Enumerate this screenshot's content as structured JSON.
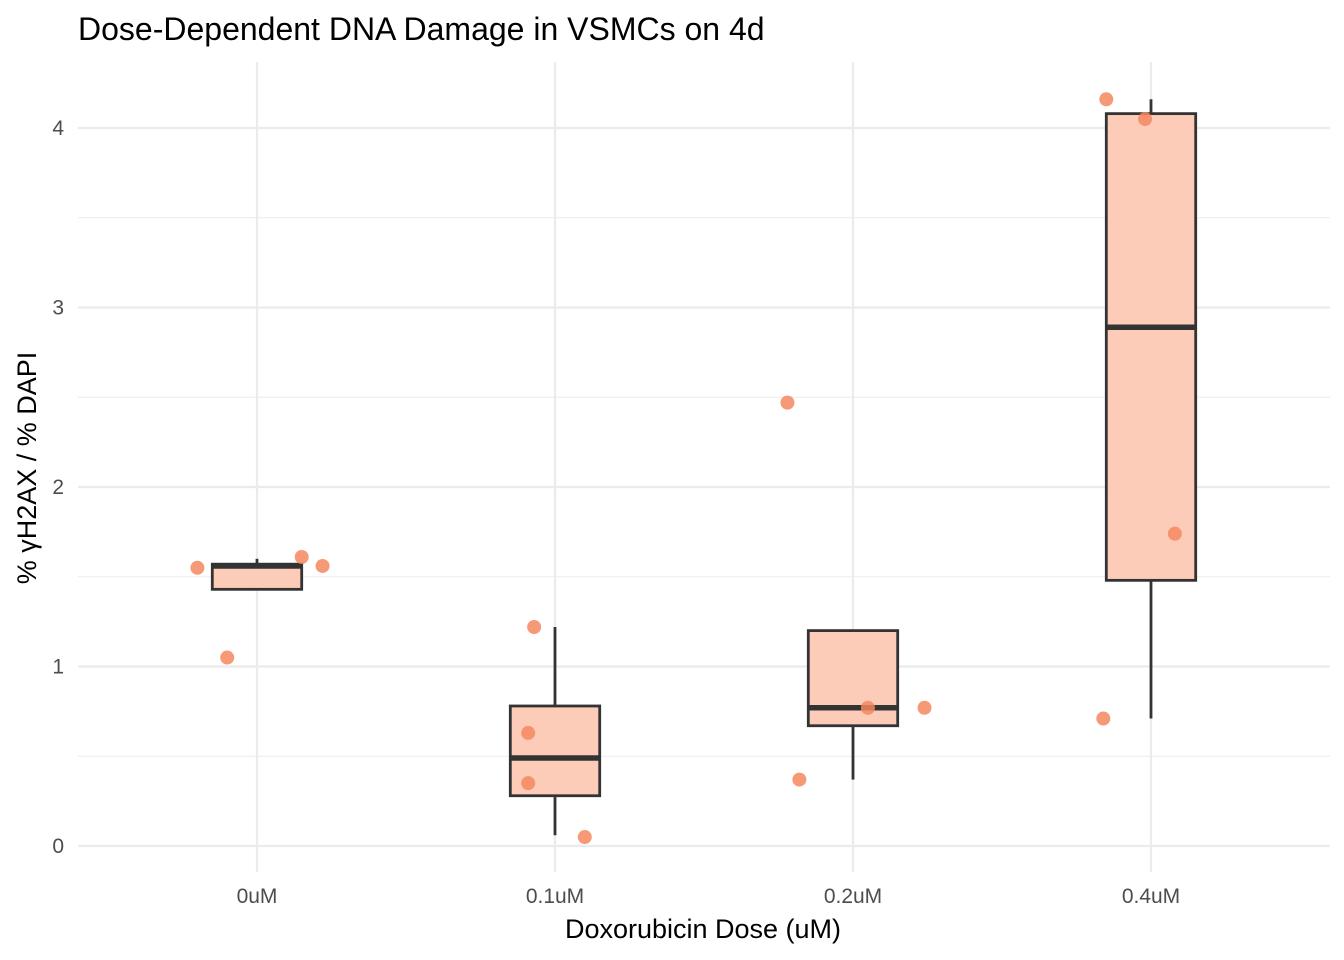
{
  "chart_data": {
    "type": "box",
    "title": "Dose-Dependent DNA Damage in VSMCs on 4d",
    "xlabel": "Doxorubicin Dose (uM)",
    "ylabel": "% γH2AX / % DAPI",
    "ylim": [
      -0.05,
      4.35
    ],
    "y_ticks": [
      0,
      1,
      2,
      3,
      4
    ],
    "grid": true,
    "legend": "none",
    "colors": {
      "box_fill": "#fdccb8",
      "box_stroke": "#333333",
      "point": "#f4875f"
    },
    "categories": [
      "0uM",
      "0.1uM",
      "0.2uM",
      "0.4uM"
    ],
    "boxes": [
      {
        "category": "0uM",
        "whisker_low": 1.43,
        "q1": 1.43,
        "median": 1.56,
        "q3": 1.57,
        "whisker_high": 1.6
      },
      {
        "category": "0.1uM",
        "whisker_low": 0.06,
        "q1": 0.28,
        "median": 0.49,
        "q3": 0.78,
        "whisker_high": 1.22
      },
      {
        "category": "0.2uM",
        "whisker_low": 0.37,
        "q1": 0.67,
        "median": 0.77,
        "q3": 1.2,
        "whisker_high": 1.2
      },
      {
        "category": "0.4uM",
        "whisker_low": 0.71,
        "q1": 1.48,
        "median": 2.89,
        "q3": 4.08,
        "whisker_high": 4.16
      }
    ],
    "points": [
      {
        "category": "0uM",
        "x_jitter": -0.2,
        "y": 1.55
      },
      {
        "category": "0uM",
        "x_jitter": -0.1,
        "y": 1.05
      },
      {
        "category": "0uM",
        "x_jitter": 0.15,
        "y": 1.61
      },
      {
        "category": "0uM",
        "x_jitter": 0.22,
        "y": 1.56
      },
      {
        "category": "0.1uM",
        "x_jitter": -0.07,
        "y": 1.22
      },
      {
        "category": "0.1uM",
        "x_jitter": -0.09,
        "y": 0.63
      },
      {
        "category": "0.1uM",
        "x_jitter": -0.09,
        "y": 0.35
      },
      {
        "category": "0.1uM",
        "x_jitter": 0.1,
        "y": 0.05
      },
      {
        "category": "0.2uM",
        "x_jitter": -0.22,
        "y": 2.47
      },
      {
        "category": "0.2uM",
        "x_jitter": -0.18,
        "y": 0.37
      },
      {
        "category": "0.2uM",
        "x_jitter": 0.05,
        "y": 0.77
      },
      {
        "category": "0.2uM",
        "x_jitter": 0.24,
        "y": 0.77
      },
      {
        "category": "0.4uM",
        "x_jitter": -0.15,
        "y": 4.16
      },
      {
        "category": "0.4uM",
        "x_jitter": -0.02,
        "y": 4.05
      },
      {
        "category": "0.4uM",
        "x_jitter": 0.08,
        "y": 1.74
      },
      {
        "category": "0.4uM",
        "x_jitter": -0.16,
        "y": 0.71
      }
    ]
  }
}
